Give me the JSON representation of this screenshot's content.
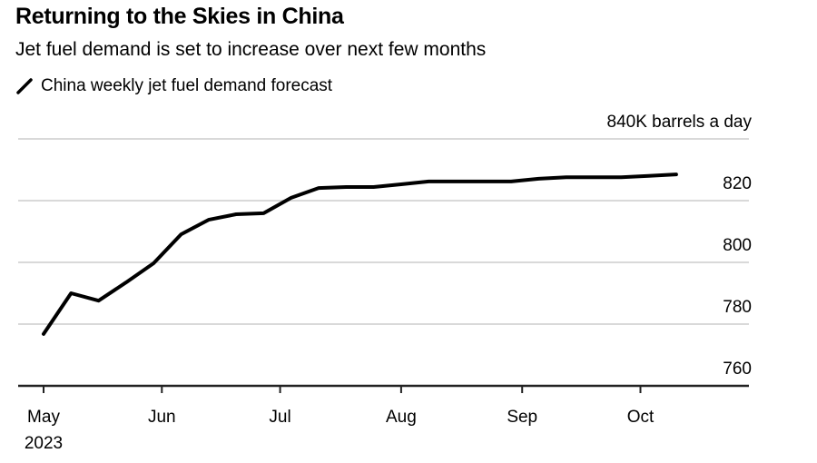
{
  "header": {
    "title": "Returning to the Skies in China",
    "subtitle": "Jet fuel demand is set to increase over next few months",
    "legend_label": "China weekly jet fuel demand forecast"
  },
  "colors": {
    "line": "#000000",
    "grid": "#d9d9d9",
    "axis": "#222222"
  },
  "chart_data": {
    "type": "line",
    "title": "Returning to the Skies in China",
    "subtitle": "Jet fuel demand is set to increase over next few months",
    "xlabel": "",
    "ylabel": "K barrels a day",
    "unit_label": "840K barrels a day",
    "ylim": [
      760,
      840
    ],
    "y_ticks": [
      {
        "value": 840,
        "label": "840K barrels a day"
      },
      {
        "value": 820,
        "label": "820"
      },
      {
        "value": 800,
        "label": "800"
      },
      {
        "value": 780,
        "label": "780"
      },
      {
        "value": 760,
        "label": "760"
      }
    ],
    "x_ticks": [
      {
        "week": 0,
        "label": "May",
        "sublabel": "2023"
      },
      {
        "week": 4.3,
        "label": "Jun",
        "sublabel": ""
      },
      {
        "week": 8.6,
        "label": "Jul",
        "sublabel": ""
      },
      {
        "week": 13,
        "label": "Aug",
        "sublabel": ""
      },
      {
        "week": 17.4,
        "label": "Sep",
        "sublabel": ""
      },
      {
        "week": 21.7,
        "label": "Oct",
        "sublabel": ""
      }
    ],
    "grid": true,
    "legend": "top-left",
    "series": [
      {
        "name": "China weekly jet fuel demand forecast",
        "x_week": [
          0,
          1,
          2,
          3,
          4,
          5,
          6,
          7,
          8,
          9,
          10,
          11,
          12,
          13,
          14,
          15,
          16,
          17,
          18,
          19,
          20,
          21,
          22,
          23
        ],
        "values": [
          776.8,
          790,
          787.6,
          793.5,
          799.7,
          809.1,
          813.8,
          815.6,
          815.9,
          820.9,
          824.1,
          824.4,
          824.4,
          825.3,
          826.2,
          826.2,
          826.2,
          826.2,
          827.1,
          827.6,
          827.6,
          827.6,
          828.0,
          828.5
        ]
      }
    ]
  }
}
